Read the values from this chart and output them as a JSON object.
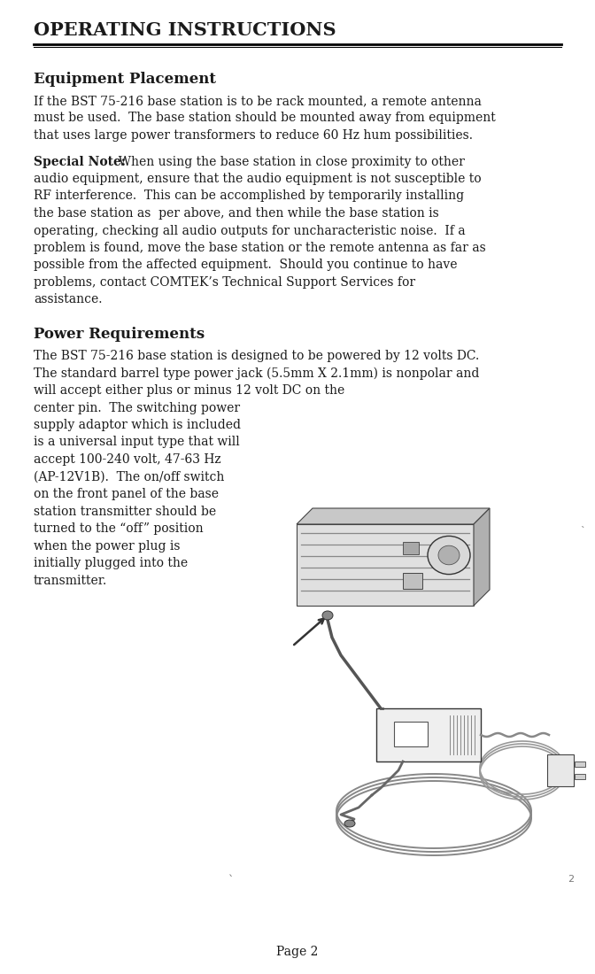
{
  "title": "OPERATING INSTRUCTIONS",
  "section1_heading": "Equipment Placement",
  "para1_lines": [
    "If the BST 75-216 base station is to be rack mounted, a remote antenna",
    "must be used.  The base station should be mounted away from equipment",
    "that uses large power transformers to reduce 60 Hz hum possibilities."
  ],
  "special_note_label": "Special Note:",
  "special_note_rest": "  When using the base station in close proximity to other",
  "special_note_lines": [
    "audio equipment, ensure that the audio equipment is not susceptible to",
    "RF interference.  This can be accomplished by temporarily installing",
    "the base station as  per above, and then while the base station is",
    "operating, checking all audio outputs for uncharacteristic noise.  If a",
    "problem is found, move the base station or the remote antenna as far as",
    "possible from the affected equipment.  Should you continue to have",
    "problems, contact COMTEK’s Technical Support Services for",
    "assistance."
  ],
  "section2_heading": "Power Requirements",
  "power_full_lines": [
    "The BST 75-216 base station is designed to be powered by 12 volts DC.",
    "The standard barrel type power jack (5.5mm X 2.1mm) is nonpolar and",
    "will accept either plus or minus 12 volt DC on the"
  ],
  "power_left_lines": [
    "center pin.  The switching power",
    "supply adaptor which is included",
    "is a universal input type that will",
    "accept 100-240 volt, 47-63 Hz",
    "(AP-12V1B).  The on/off switch",
    "on the front panel of the base",
    "station transmitter should be",
    "turned to the “off” position",
    "when the power plug is",
    "initially plugged into the",
    "transmitter."
  ],
  "page_label": "Page 2",
  "bg_color": "#ffffff",
  "text_color": "#1a1a1a",
  "font_family": "DejaVu Serif"
}
